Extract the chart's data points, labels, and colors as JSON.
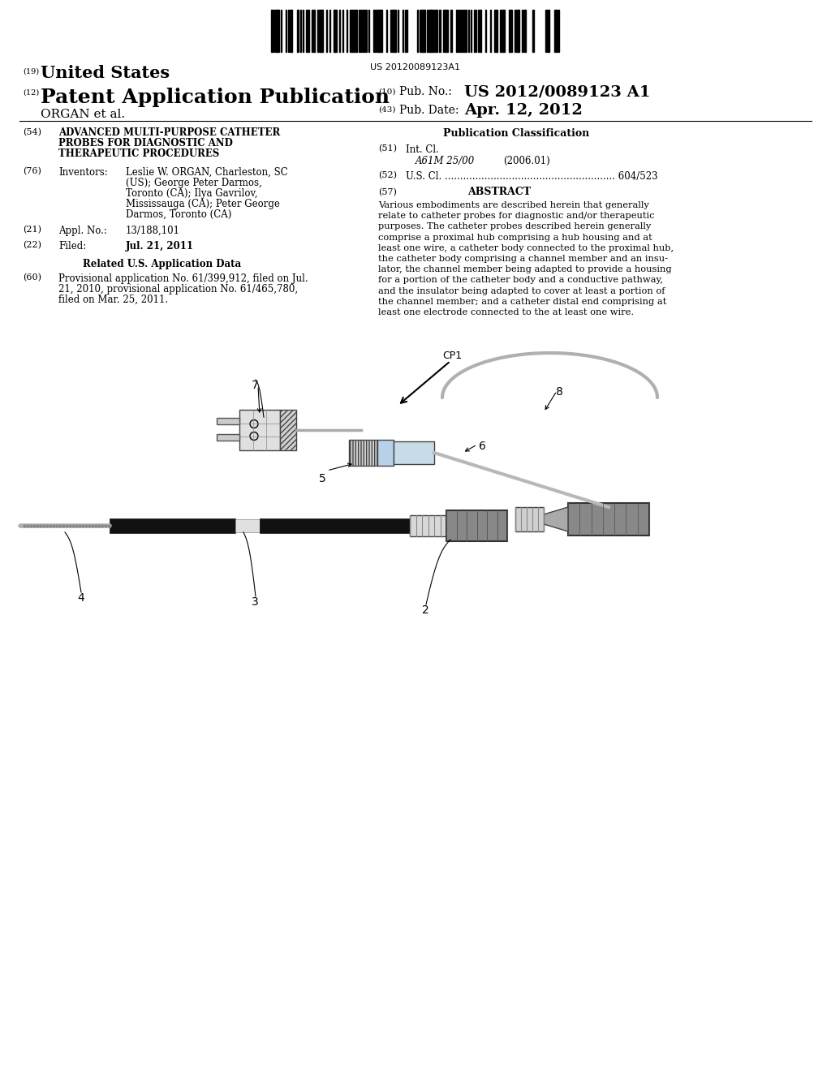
{
  "bg_color": "#ffffff",
  "barcode_text": "US 20120089123A1",
  "field54_title_lines": [
    "ADVANCED MULTI-PURPOSE CATHETER",
    "PROBES FOR DIAGNOSTIC AND",
    "THERAPEUTIC PROCEDURES"
  ],
  "pub_class_label": "Publication Classification",
  "int_cl_code": "A61M 25/00",
  "int_cl_year": "(2006.01)",
  "us_cl_label": "U.S. Cl. ........................................................ 604/523",
  "abstract_title": "ABSTRACT",
  "abstract_lines": [
    "Various embodiments are described herein that generally",
    "relate to catheter probes for diagnostic and/or therapeutic",
    "purposes. The catheter probes described herein generally",
    "comprise a proximal hub comprising a hub housing and at",
    "least one wire, a catheter body connected to the proximal hub,",
    "the catheter body comprising a channel member and an insu-",
    "lator, the channel member being adapted to provide a housing",
    "for a portion of the catheter body and a conductive pathway,",
    "and the insulator being adapted to cover at least a portion of",
    "the channel member; and a catheter distal end comprising at",
    "least one electrode connected to the at least one wire."
  ],
  "inv_lines": [
    "Leslie W. ORGAN, Charleston, SC",
    "(US); George Peter Darmos,",
    "Toronto (CA); Ilya Gavrilov,",
    "Mississauga (CA); Peter George",
    "Darmos, Toronto (CA)"
  ],
  "appl_no_value": "13/188,101",
  "filed_value": "Jul. 21, 2011",
  "provisional_lines": [
    "Provisional application No. 61/399,912, filed on Jul.",
    "21, 2010, provisional application No. 61/465,780,",
    "filed on Mar. 25, 2011."
  ]
}
